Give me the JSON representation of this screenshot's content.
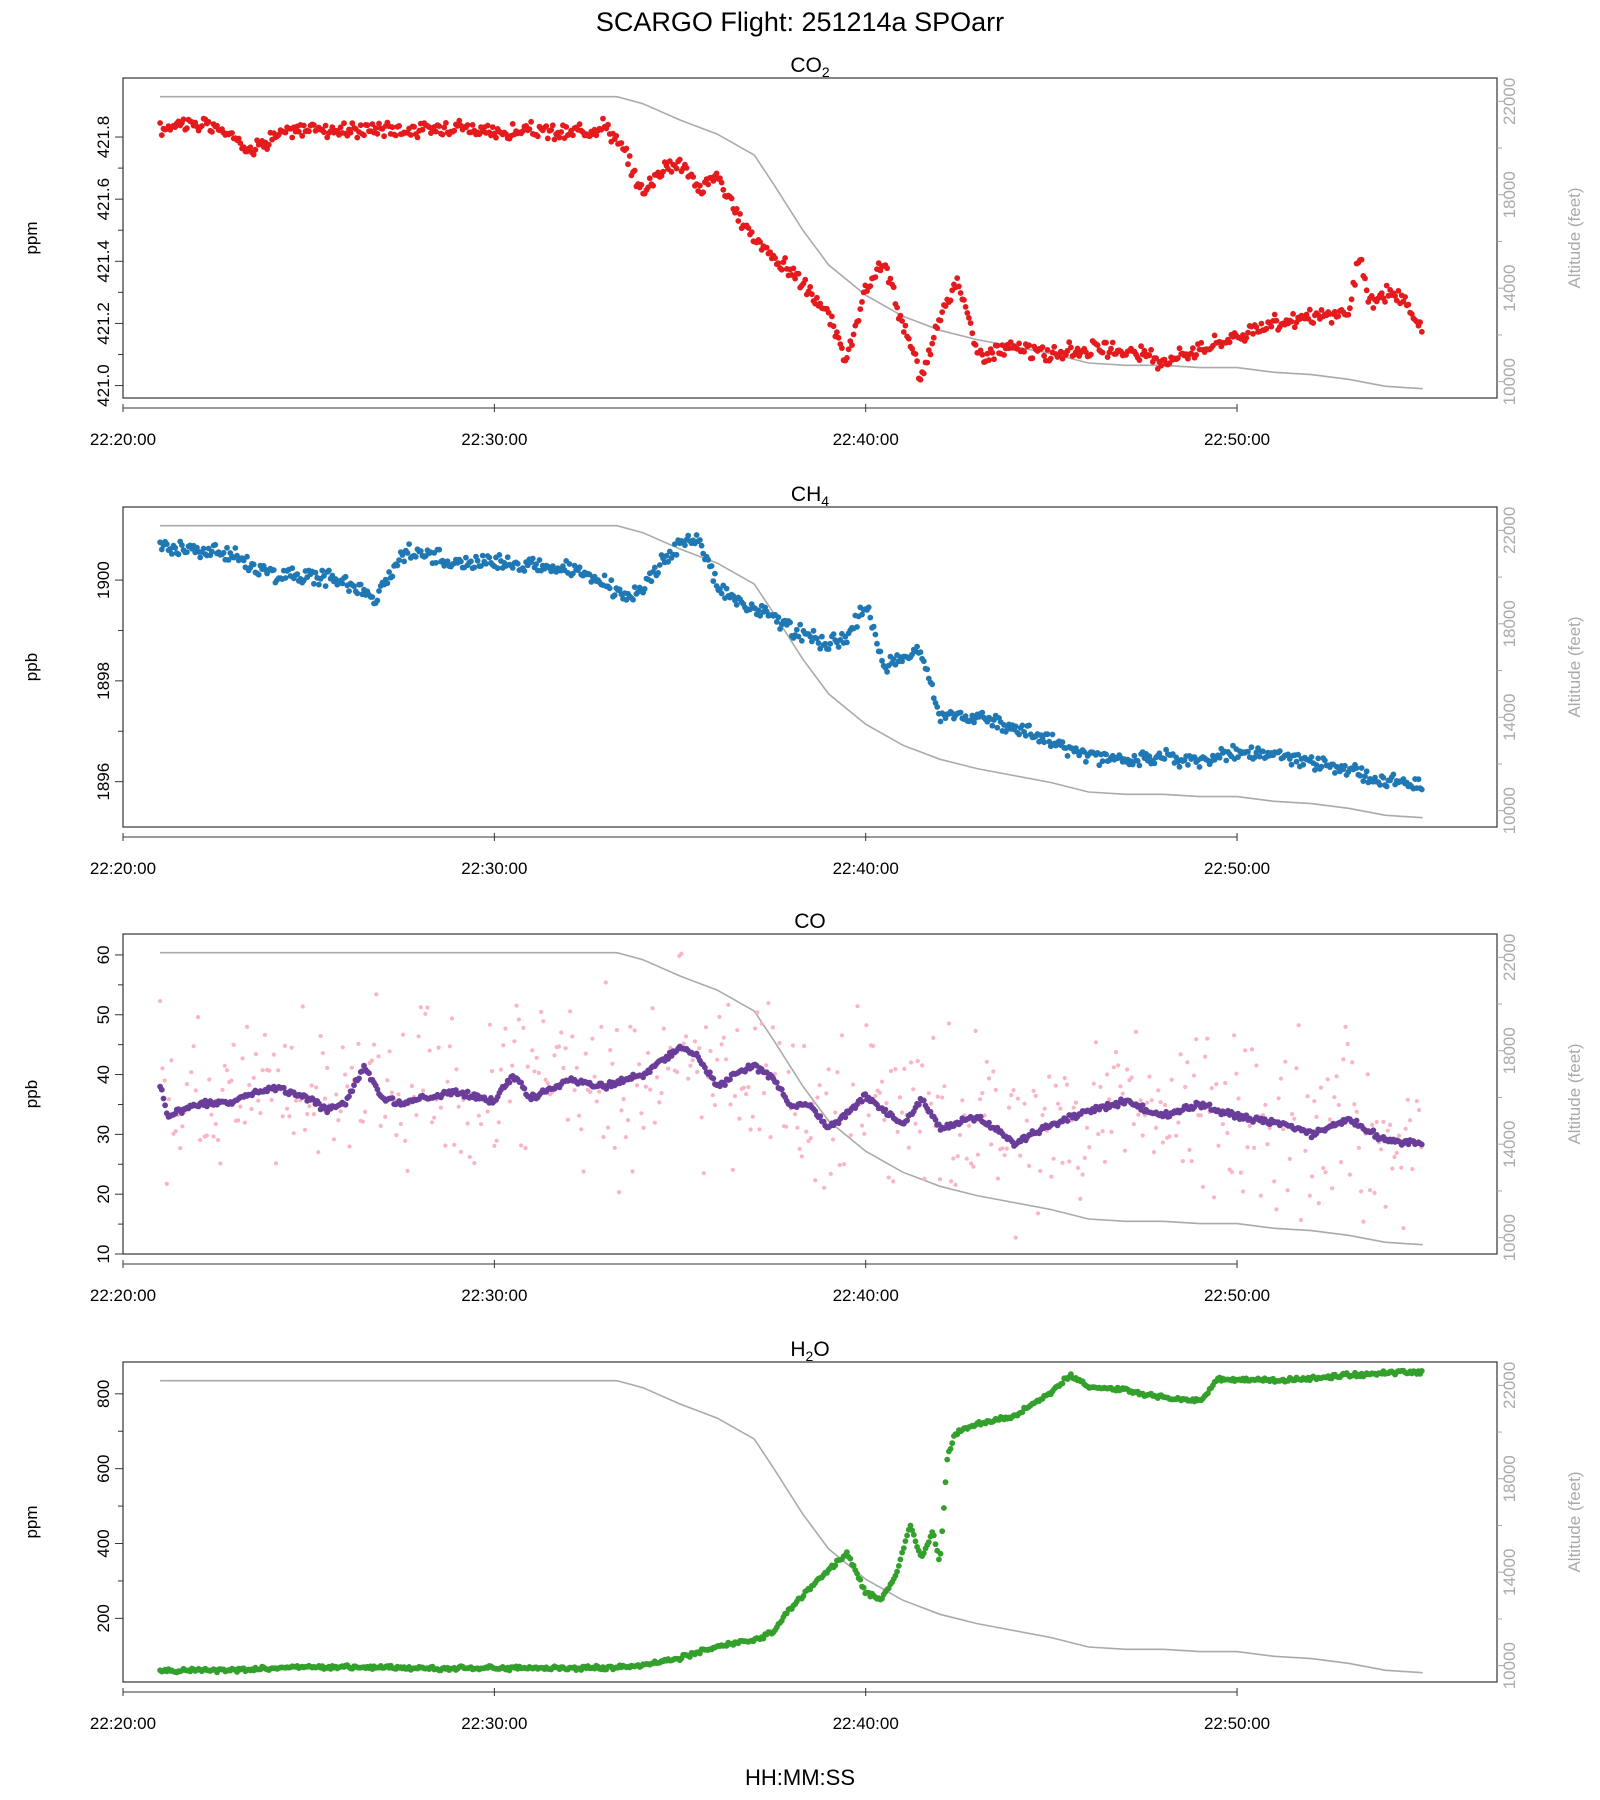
{
  "figure": {
    "title": "SCARGO Flight: 251214a  SPOarr",
    "xlabel": "HH:MM:SS"
  },
  "chart_data": [
    {
      "type": "scatter",
      "title_main": "CO",
      "title_sub": "2",
      "ylabel": "ppm",
      "y2label": "Altitude (feet)",
      "ylim": [
        420.96,
        421.99
      ],
      "yticks": [
        "421.0",
        "421.2",
        "421.4",
        "421.6",
        "421.8"
      ],
      "ytick_values": [
        421.0,
        421.2,
        421.4,
        421.6,
        421.8
      ],
      "y2ticks": [
        "10000",
        "14000",
        "18000",
        "22000"
      ],
      "y2tick_values": [
        10000,
        14000,
        18000,
        22000
      ],
      "point_color": "#e41a1c",
      "series": [
        {
          "name": "CO2",
          "x": [
            1.0,
            1.5,
            2.5,
            3.5,
            4.0,
            5.0,
            6.0,
            7.0,
            8.0,
            9.0,
            10.0,
            11.0,
            12.0,
            13.0,
            13.5,
            14.0,
            14.5,
            15.0,
            15.5,
            16.0,
            16.5,
            17.0,
            17.5,
            18.0,
            18.5,
            19.0,
            19.5,
            20.0,
            20.5,
            21.0,
            21.5,
            22.0,
            22.5,
            23.0,
            24.0,
            25.0,
            26.0,
            27.0,
            28.0,
            29.0,
            30.0,
            31.0,
            32.0,
            33.0,
            33.3,
            33.6,
            34.0,
            34.5,
            35.0
          ],
          "y": [
            421.82,
            421.85,
            421.83,
            421.76,
            421.8,
            421.83,
            421.82,
            421.83,
            421.82,
            421.84,
            421.81,
            421.82,
            421.81,
            421.84,
            421.75,
            421.62,
            421.7,
            421.72,
            421.63,
            421.68,
            421.55,
            421.48,
            421.41,
            421.37,
            421.3,
            421.22,
            421.08,
            421.3,
            421.4,
            421.2,
            421.02,
            421.22,
            421.35,
            421.1,
            421.12,
            421.1,
            421.12,
            421.11,
            421.08,
            421.12,
            421.16,
            421.2,
            421.22,
            421.23,
            421.42,
            421.26,
            421.3,
            421.27,
            421.17
          ]
        }
      ],
      "altitude": {
        "name": "Altitude",
        "x": [
          1,
          13.3,
          14,
          15,
          16,
          17,
          17.5,
          18.3,
          19,
          20,
          21,
          22,
          23,
          24,
          25,
          26,
          27,
          28,
          29,
          30,
          31,
          32,
          33,
          34,
          35
        ],
        "y": [
          22200,
          22200,
          21900,
          21200,
          20600,
          19700,
          18500,
          16500,
          15000,
          13700,
          12800,
          12200,
          11800,
          11500,
          11200,
          10800,
          10700,
          10700,
          10600,
          10600,
          10400,
          10300,
          10100,
          9800,
          9700
        ]
      }
    },
    {
      "type": "scatter",
      "title_main": "CH",
      "title_sub": "4",
      "ylabel": "ppb",
      "y2label": "Altitude (feet)",
      "ylim": [
        1895.1,
        1901.45
      ],
      "yticks": [
        "1896",
        "1898",
        "1900"
      ],
      "ytick_values": [
        1896,
        1898,
        1900
      ],
      "y2ticks": [
        "10000",
        "14000",
        "18000",
        "22000"
      ],
      "y2tick_values": [
        10000,
        14000,
        18000,
        22000
      ],
      "point_color": "#1f78b4",
      "series": [
        {
          "name": "CH4",
          "x": [
            1.0,
            2.0,
            3.0,
            4.0,
            5.0,
            6.0,
            6.8,
            7.5,
            8.0,
            9.0,
            10.0,
            10.5,
            11.0,
            12.0,
            13.0,
            13.5,
            14.0,
            14.5,
            15.0,
            15.5,
            16.0,
            16.5,
            17.0,
            17.5,
            18.0,
            18.5,
            19.0,
            19.5,
            20.0,
            20.5,
            21.0,
            21.5,
            22.0,
            23.0,
            24.0,
            25.0,
            26.0,
            27.0,
            28.0,
            29.0,
            30.0,
            31.0,
            32.0,
            33.0,
            34.0,
            35.0
          ],
          "y": [
            1900.7,
            1900.6,
            1900.5,
            1900.1,
            1900.1,
            1900.0,
            1899.6,
            1900.5,
            1900.6,
            1900.3,
            1900.4,
            1900.3,
            1900.3,
            1900.2,
            1899.9,
            1899.7,
            1899.8,
            1900.4,
            1900.7,
            1900.8,
            1899.9,
            1899.6,
            1899.4,
            1899.3,
            1899.0,
            1898.9,
            1898.7,
            1898.9,
            1899.5,
            1898.3,
            1898.5,
            1898.6,
            1897.3,
            1897.3,
            1897.1,
            1896.8,
            1896.5,
            1896.4,
            1896.5,
            1896.4,
            1896.6,
            1896.5,
            1896.4,
            1896.2,
            1896.0,
            1895.9
          ]
        }
      ],
      "altitude": {
        "name": "Altitude",
        "x": [
          1,
          13.3,
          14,
          15,
          16,
          17,
          17.5,
          18.3,
          19,
          20,
          21,
          22,
          23,
          24,
          25,
          26,
          27,
          28,
          29,
          30,
          31,
          32,
          33,
          34,
          35
        ],
        "y": [
          22200,
          22200,
          21900,
          21200,
          20600,
          19700,
          18500,
          16500,
          15000,
          13700,
          12800,
          12200,
          11800,
          11500,
          11200,
          10800,
          10700,
          10700,
          10600,
          10600,
          10400,
          10300,
          10100,
          9800,
          9700
        ]
      }
    },
    {
      "type": "scatter",
      "title_main": "CO",
      "title_sub": "",
      "ylabel": "ppb",
      "y2label": "Altitude (feet)",
      "ylim": [
        10,
        63.5
      ],
      "yticks": [
        "10",
        "20",
        "30",
        "40",
        "50",
        "60"
      ],
      "ytick_values": [
        10,
        20,
        30,
        40,
        50,
        60
      ],
      "y2ticks": [
        "10000",
        "14000",
        "18000",
        "22000"
      ],
      "y2tick_values": [
        10000,
        14000,
        18000,
        22000
      ],
      "point_color": "#6a3d9a",
      "raw_color": "#fbb4c4",
      "series": [
        {
          "name": "CO (smoothed)",
          "x": [
            1.0,
            1.2,
            2.0,
            3.0,
            4.0,
            5.0,
            5.5,
            6.0,
            6.5,
            7.0,
            7.5,
            8.0,
            9.0,
            10.0,
            10.5,
            11.0,
            12.0,
            13.0,
            14.0,
            15.0,
            15.5,
            16.0,
            16.5,
            17.0,
            17.5,
            18.0,
            18.5,
            19.0,
            19.5,
            20.0,
            20.5,
            21.0,
            21.5,
            22.0,
            23.0,
            24.0,
            25.0,
            26.0,
            27.0,
            28.0,
            29.0,
            30.0,
            31.0,
            32.0,
            33.0,
            34.0,
            35.0
          ],
          "y": [
            38.5,
            33.0,
            35.0,
            35.5,
            38.0,
            36.0,
            34.0,
            35.5,
            41.5,
            36.0,
            35.0,
            36.0,
            37.0,
            35.5,
            40.0,
            36.0,
            39.0,
            38.0,
            40.0,
            44.5,
            43.0,
            38.0,
            40.0,
            41.5,
            39.5,
            34.5,
            35.0,
            31.0,
            33.5,
            36.5,
            34.0,
            31.5,
            36.0,
            31.0,
            33.0,
            28.5,
            31.5,
            34.0,
            35.5,
            33.0,
            35.0,
            33.0,
            32.0,
            30.0,
            32.5,
            29.0,
            28.5
          ]
        }
      ],
      "altitude": {
        "name": "Altitude",
        "x": [
          1,
          13.3,
          14,
          15,
          16,
          17,
          17.5,
          18.3,
          19,
          20,
          21,
          22,
          23,
          24,
          25,
          26,
          27,
          28,
          29,
          30,
          31,
          32,
          33,
          34,
          35
        ],
        "y": [
          22200,
          22200,
          21900,
          21200,
          20600,
          19700,
          18500,
          16500,
          15000,
          13700,
          12800,
          12200,
          11800,
          11500,
          11200,
          10800,
          10700,
          10700,
          10600,
          10600,
          10400,
          10300,
          10100,
          9800,
          9700
        ]
      }
    },
    {
      "type": "scatter",
      "title_main": "H",
      "title_sub": "2",
      "title_tail": "O",
      "ylabel": "ppm",
      "y2label": "Altitude (feet)",
      "ylim": [
        30,
        885
      ],
      "yticks": [
        "200",
        "400",
        "600",
        "800"
      ],
      "ytick_values": [
        200,
        400,
        600,
        800
      ],
      "y2ticks": [
        "10000",
        "14000",
        "18000",
        "22000"
      ],
      "y2tick_values": [
        10000,
        14000,
        18000,
        22000
      ],
      "point_color": "#33a02c",
      "series": [
        {
          "name": "H2O",
          "x": [
            1.0,
            3.0,
            5.0,
            7.0,
            9.0,
            11.0,
            13.0,
            14.0,
            15.0,
            16.0,
            17.0,
            17.5,
            18.0,
            18.5,
            19.0,
            19.5,
            20.0,
            20.4,
            20.8,
            21.2,
            21.5,
            21.8,
            22.0,
            22.2,
            22.4,
            22.6,
            23.0,
            24.0,
            25.0,
            25.5,
            26.0,
            26.5,
            27.0,
            28.0,
            29.0,
            29.5,
            30.0,
            31.0,
            32.0,
            33.0,
            34.0,
            35.0
          ],
          "y": [
            60,
            62,
            72,
            68,
            66,
            68,
            68,
            75,
            95,
            125,
            140,
            165,
            230,
            280,
            330,
            375,
            270,
            250,
            310,
            450,
            360,
            430,
            350,
            630,
            690,
            705,
            720,
            740,
            805,
            850,
            820,
            815,
            810,
            790,
            780,
            840,
            840,
            835,
            840,
            850,
            855,
            860
          ]
        }
      ],
      "altitude": {
        "name": "Altitude",
        "x": [
          1,
          13.3,
          14,
          15,
          16,
          17,
          17.5,
          18.3,
          19,
          20,
          21,
          22,
          23,
          24,
          25,
          26,
          27,
          28,
          29,
          30,
          31,
          32,
          33,
          34,
          35
        ],
        "y": [
          22200,
          22200,
          21900,
          21200,
          20600,
          19700,
          18500,
          16500,
          15000,
          13700,
          12800,
          12200,
          11800,
          11500,
          11200,
          10800,
          10700,
          10700,
          10600,
          10600,
          10400,
          10300,
          10100,
          9800,
          9700
        ]
      }
    }
  ],
  "xaxis": {
    "unit": "minutes after 22:20:00",
    "xlim": [
      0,
      37
    ],
    "ticks": [
      "22:20:00",
      "22:30:00",
      "22:40:00",
      "22:50:00"
    ],
    "tick_values": [
      0,
      10,
      20,
      30
    ]
  },
  "altitude_axis": {
    "ylim": [
      9300,
      23000
    ]
  },
  "altitude_color": "#aaaaaa"
}
